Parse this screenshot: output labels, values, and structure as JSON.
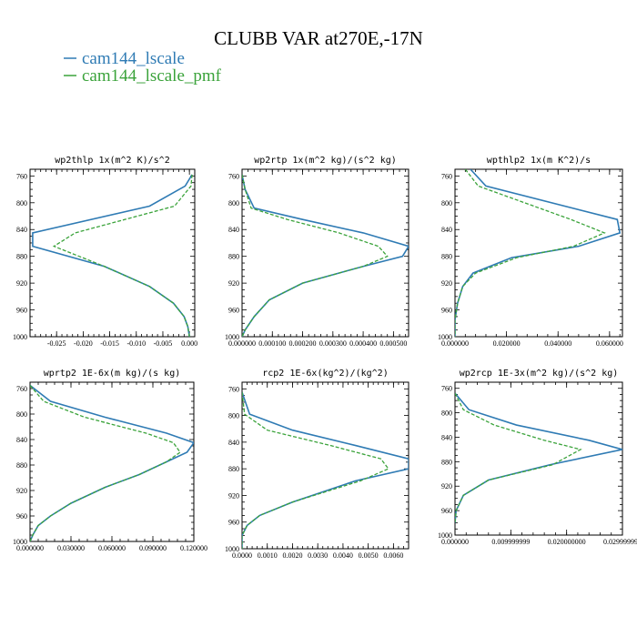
{
  "figure": {
    "title": "CLUBB VAR at270E,-17N",
    "legend": [
      {
        "label": "cam144_lscale",
        "color": "#2f7bb4",
        "dash": "solid"
      },
      {
        "label": "cam144_lscale_pmf",
        "color": "#3ba33b",
        "dash": "dashed"
      }
    ]
  },
  "chart_data": [
    {
      "type": "line",
      "title": "wp2thlp  1x(m^2 K)/s^2",
      "xlim": [
        -0.03,
        0.001
      ],
      "xticks": [
        -0.025,
        -0.02,
        -0.015,
        -0.01,
        -0.005,
        0.0
      ],
      "xtick_labels": [
        "-0.025",
        "-0.020",
        "-0.015",
        "-0.010",
        "-0.005",
        "0.000"
      ],
      "ylim": [
        1000,
        750
      ],
      "yticks": [
        760,
        800,
        840,
        880,
        920,
        960,
        1000
      ],
      "y": [
        758,
        775,
        805,
        845,
        865,
        895,
        925,
        950,
        970,
        985,
        1000
      ],
      "series": [
        {
          "name": "cam144_lscale",
          "color": "#2f7bb4",
          "dash": "solid",
          "values": [
            0.0005,
            -0.0008,
            -0.0075,
            -0.0295,
            -0.0295,
            -0.016,
            -0.0075,
            -0.003,
            -0.001,
            -0.0003,
            0.0
          ]
        },
        {
          "name": "cam144_lscale_pmf",
          "color": "#3ba33b",
          "dash": "dashed",
          "values": [
            0.0005,
            0.0003,
            -0.0028,
            -0.0215,
            -0.0255,
            -0.016,
            -0.0075,
            -0.003,
            -0.001,
            -0.0003,
            0.0
          ]
        }
      ]
    },
    {
      "type": "line",
      "title": "wp2rtp  1x(m^2 kg)/(s^2 kg)",
      "xlim": [
        0.0,
        0.00055
      ],
      "xticks": [
        0.0,
        0.0001,
        0.0002,
        0.0003,
        0.0004,
        0.0005
      ],
      "xtick_labels": [
        "0.000000",
        "0.000100",
        "0.000200",
        "0.000300",
        "0.000400",
        "0.000500"
      ],
      "ylim": [
        1000,
        750
      ],
      "yticks": [
        760,
        800,
        840,
        880,
        920,
        960,
        1000
      ],
      "y": [
        758,
        780,
        808,
        825,
        845,
        865,
        880,
        895,
        920,
        945,
        970,
        990,
        1000
      ],
      "series": [
        {
          "name": "cam144_lscale",
          "color": "#2f7bb4",
          "dash": "solid",
          "values": [
            0.0,
            1e-05,
            4e-05,
            0.0002,
            0.0004,
            0.00055,
            0.00053,
            0.0004,
            0.0002,
            9e-05,
            4e-05,
            1e-05,
            0.0
          ]
        },
        {
          "name": "cam144_lscale_pmf",
          "color": "#3ba33b",
          "dash": "dashed",
          "values": [
            0.0,
            1e-05,
            3e-05,
            0.00015,
            0.00032,
            0.00045,
            0.00048,
            0.0004,
            0.0002,
            9e-05,
            4e-05,
            1e-05,
            0.0
          ]
        }
      ]
    },
    {
      "type": "line",
      "title": "wpthlp2  1x(m K^2)/s",
      "xlim": [
        0.0,
        0.065
      ],
      "xticks": [
        0.0,
        0.02,
        0.04,
        0.06
      ],
      "xtick_labels": [
        "0.000000",
        "0.020000",
        "0.040000",
        "0.060000"
      ],
      "ylim": [
        1000,
        750
      ],
      "yticks": [
        760,
        800,
        840,
        880,
        920,
        960,
        1000
      ],
      "y": [
        750,
        775,
        825,
        845,
        865,
        882,
        905,
        925,
        950,
        975,
        1000
      ],
      "series": [
        {
          "name": "cam144_lscale",
          "color": "#2f7bb4",
          "dash": "solid",
          "values": [
            0.006,
            0.012,
            0.063,
            0.064,
            0.048,
            0.022,
            0.007,
            0.003,
            0.001,
            0.0,
            0.0
          ]
        },
        {
          "name": "cam144_lscale_pmf",
          "color": "#3ba33b",
          "dash": "dashed",
          "values": [
            0.004,
            0.009,
            0.045,
            0.058,
            0.046,
            0.024,
            0.008,
            0.003,
            0.001,
            0.0,
            0.0
          ]
        }
      ]
    },
    {
      "type": "line",
      "title": "wprtp2  1E-6x(m kg)/(s kg)",
      "xlim": [
        0.0,
        0.12
      ],
      "xticks": [
        0.0,
        0.03,
        0.06,
        0.09,
        0.12
      ],
      "xtick_labels": [
        "0.000000",
        "0.030000",
        "0.060000",
        "0.090000",
        "0.120000"
      ],
      "ylim": [
        1000,
        750
      ],
      "yticks": [
        760,
        800,
        840,
        880,
        920,
        960,
        1000
      ],
      "y": [
        755,
        780,
        805,
        830,
        845,
        860,
        875,
        895,
        915,
        940,
        960,
        975,
        990,
        1000
      ],
      "series": [
        {
          "name": "cam144_lscale",
          "color": "#2f7bb4",
          "dash": "solid",
          "values": [
            0.0,
            0.015,
            0.055,
            0.1,
            0.12,
            0.115,
            0.1,
            0.08,
            0.055,
            0.03,
            0.015,
            0.006,
            0.002,
            0.0
          ]
        },
        {
          "name": "cam144_lscale_pmf",
          "color": "#3ba33b",
          "dash": "dashed",
          "values": [
            0.0,
            0.01,
            0.04,
            0.085,
            0.105,
            0.11,
            0.1,
            0.08,
            0.055,
            0.03,
            0.015,
            0.006,
            0.002,
            0.0
          ]
        }
      ]
    },
    {
      "type": "line",
      "title": "rcp2  1E-6x(kg^2)/(kg^2)",
      "xlim": [
        0.0,
        0.0066
      ],
      "xticks": [
        0.0,
        0.001,
        0.002,
        0.003,
        0.004,
        0.005,
        0.006
      ],
      "xtick_labels": [
        "0.0000",
        "0.0010",
        "0.0020",
        "0.0030",
        "0.0040",
        "0.0050",
        "0.0060"
      ],
      "ylim": [
        1000,
        750
      ],
      "yticks": [
        760,
        800,
        840,
        880,
        920,
        960,
        1000
      ],
      "y": [
        765,
        798,
        822,
        845,
        865,
        880,
        898,
        930,
        950,
        965,
        980,
        1000
      ],
      "series": [
        {
          "name": "cam144_lscale",
          "color": "#2f7bb4",
          "dash": "solid",
          "values": [
            0.0,
            0.0003,
            0.002,
            0.0045,
            0.0066,
            0.0066,
            0.0045,
            0.002,
            0.0007,
            0.0002,
            0.0,
            0.0
          ]
        },
        {
          "name": "cam144_lscale_pmf",
          "color": "#3ba33b",
          "dash": "dashed",
          "values": [
            0.0,
            0.0001,
            0.001,
            0.0035,
            0.0055,
            0.0058,
            0.0047,
            0.002,
            0.0007,
            0.0002,
            0.0,
            0.0
          ]
        }
      ]
    },
    {
      "type": "line",
      "title": "wp2rcp  1E-3x(m^2 kg)/(s^2 kg)",
      "xlim": [
        0.0,
        0.03
      ],
      "xticks": [
        0.0,
        0.01,
        0.02,
        0.03
      ],
      "xtick_labels": [
        "0.000000",
        "0.009999999",
        "0.020000000",
        "0.029999999"
      ],
      "ylim": [
        1000,
        750
      ],
      "yticks": [
        760,
        800,
        840,
        880,
        920,
        960,
        1000
      ],
      "y": [
        768,
        795,
        820,
        845,
        860,
        885,
        910,
        935,
        960,
        980
      ],
      "series": [
        {
          "name": "cam144_lscale",
          "color": "#2f7bb4",
          "dash": "solid",
          "values": [
            0.0,
            0.0025,
            0.011,
            0.024,
            0.03,
            0.017,
            0.006,
            0.0015,
            0.0002,
            0.0
          ]
        },
        {
          "name": "cam144_lscale_pmf",
          "color": "#3ba33b",
          "dash": "dashed",
          "values": [
            0.0,
            0.0015,
            0.007,
            0.016,
            0.0225,
            0.0175,
            0.006,
            0.0015,
            0.0002,
            0.0
          ]
        }
      ]
    }
  ]
}
